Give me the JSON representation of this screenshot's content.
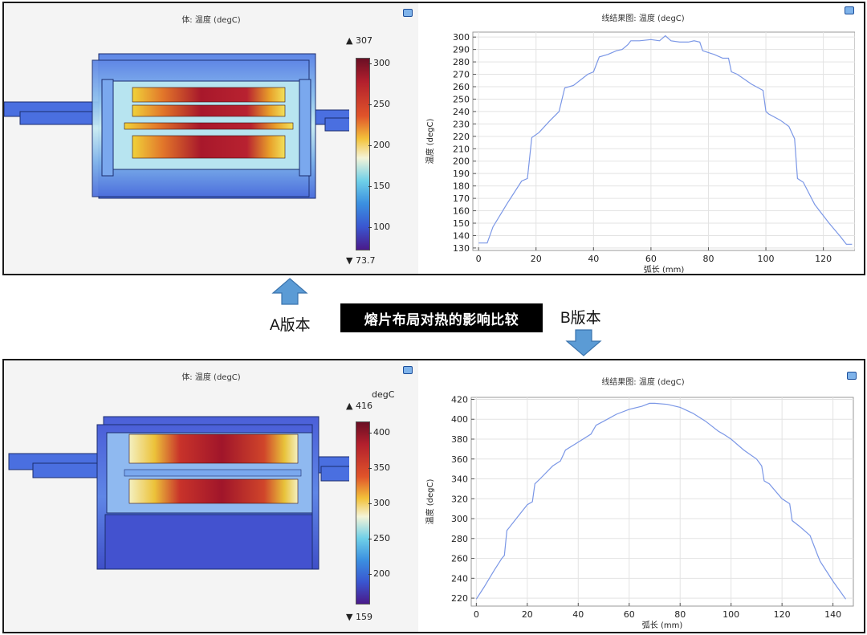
{
  "banner": "熔片布局对热的影响比较",
  "label_a": "A版本",
  "label_b": "B版本",
  "colors": {
    "line": "#7b97e6",
    "arrow": "#5b9bd5",
    "arrow_edge": "#3a73ad"
  },
  "top": {
    "panel3d": {
      "title": "体: 温度 (degC)",
      "unit_label": "",
      "max_label": "307",
      "min_label": "73.7",
      "min": 73.7,
      "max": 307,
      "ticks": [
        "300",
        "250",
        "200",
        "150",
        "100"
      ],
      "tick_values": [
        300,
        250,
        200,
        150,
        100
      ]
    },
    "chart_title": "线结果图: 温度 (degC)"
  },
  "bottom": {
    "panel3d": {
      "title": "体: 温度 (degC)",
      "unit_label": "degC",
      "max_label": "416",
      "min_label": "159",
      "min": 159,
      "max": 416,
      "ticks": [
        "400",
        "350",
        "300",
        "250",
        "200"
      ],
      "tick_values": [
        400,
        350,
        300,
        250,
        200
      ]
    },
    "chart_title": "线结果图: 温度 (degC)"
  },
  "chart_data": [
    {
      "type": "line",
      "title": "线结果图: 温度 (degC)",
      "xlabel": "弧长 (mm)",
      "ylabel": "温度 (degC)",
      "xlim": [
        -2,
        131
      ],
      "ylim": [
        128,
        304
      ],
      "xticks": [
        0,
        20,
        40,
        60,
        80,
        100,
        120
      ],
      "yticks": [
        130,
        140,
        150,
        160,
        170,
        180,
        190,
        200,
        210,
        220,
        230,
        240,
        250,
        260,
        270,
        280,
        290,
        300
      ],
      "grid": true,
      "series": [
        {
          "x": [
            0,
            3,
            5,
            10,
            15,
            17,
            18.5,
            21,
            25,
            28,
            30,
            33,
            38,
            40,
            42,
            45,
            48,
            50,
            52,
            53,
            56,
            60,
            63,
            65,
            67,
            70,
            73,
            75,
            77,
            78,
            82,
            85,
            87,
            88,
            90,
            95,
            99,
            100,
            101,
            105,
            108,
            110,
            111,
            113,
            117,
            122,
            126,
            128,
            130
          ],
          "y": [
            134,
            134,
            147,
            166,
            184,
            186,
            219,
            223,
            233,
            240,
            259,
            261,
            270,
            272,
            284,
            286,
            289,
            290,
            294,
            297,
            297,
            298,
            297,
            301,
            297,
            296,
            296,
            297,
            296,
            289,
            286,
            283,
            283,
            272,
            270,
            262,
            257,
            240,
            238,
            233,
            228,
            218,
            186,
            183,
            165,
            150,
            139,
            133,
            133
          ]
        }
      ]
    },
    {
      "type": "line",
      "title": "线结果图: 温度 (degC)",
      "xlabel": "弧长 (mm)",
      "ylabel": "温度 (degC)",
      "xlim": [
        -2,
        148
      ],
      "ylim": [
        212,
        422
      ],
      "xticks": [
        0,
        20,
        40,
        60,
        80,
        100,
        120,
        140
      ],
      "yticks": [
        220,
        240,
        260,
        280,
        300,
        320,
        340,
        360,
        380,
        400,
        420
      ],
      "grid": true,
      "series": [
        {
          "x": [
            0,
            3,
            7,
            10,
            11,
            12,
            16,
            20,
            22,
            23,
            25,
            30,
            33,
            35,
            40,
            45,
            47,
            50,
            55,
            60,
            65,
            68,
            70,
            75,
            80,
            85,
            90,
            95,
            97,
            100,
            105,
            110,
            112,
            113,
            115,
            120,
            123,
            124,
            127,
            131,
            134,
            135,
            140,
            145
          ],
          "y": [
            219,
            231,
            248,
            260,
            263,
            288,
            301,
            314,
            317,
            335,
            340,
            353,
            358,
            369,
            377,
            385,
            394,
            398,
            405,
            410,
            413,
            416,
            416,
            415,
            412,
            406,
            398,
            388,
            385,
            380,
            369,
            360,
            353,
            338,
            335,
            320,
            315,
            298,
            292,
            283,
            263,
            257,
            237,
            219
          ]
        }
      ]
    }
  ]
}
